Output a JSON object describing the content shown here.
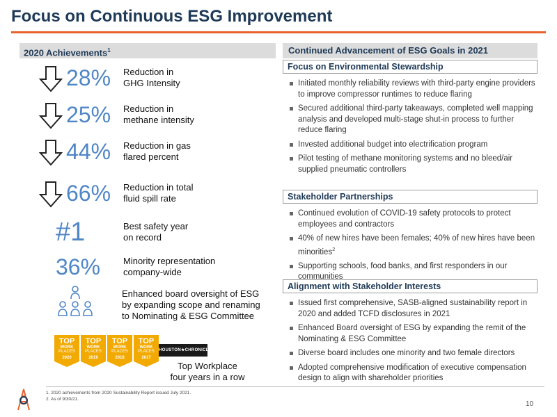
{
  "title": "Focus on Continuous ESG Improvement",
  "left": {
    "header": "2020 Achievements",
    "header_sup": "1",
    "achievements": [
      {
        "value": "28%",
        "line1": "Reduction in",
        "line2": "GHG Intensity",
        "icon": "down-arrow-icon"
      },
      {
        "value": "25%",
        "line1": "Reduction in",
        "line2": "methane intensity",
        "icon": "down-arrow-icon"
      },
      {
        "value": "44%",
        "line1": "Reduction in gas",
        "line2": "flared percent",
        "icon": "down-arrow-icon"
      },
      {
        "value": "66%",
        "line1": "Reduction in total",
        "line2": "fluid spill rate",
        "icon": "down-arrow-icon"
      },
      {
        "value": "#1",
        "line1": "Best safety year",
        "line2": "on record"
      },
      {
        "value": "36%",
        "line1": "Minority representation",
        "line2": "company-wide"
      }
    ],
    "board": {
      "line1": "Enhanced board oversight of ESG",
      "line2": "by expanding scope and renaming",
      "line3": "to Nominating & ESG Committee",
      "icon": "people-group-icon"
    },
    "badges": [
      {
        "top": "TOP",
        "work": "WORK",
        "places": "PLACES",
        "year": "2020"
      },
      {
        "top": "TOP",
        "work": "WORK",
        "places": "PLACES",
        "year": "2019"
      },
      {
        "top": "TOP",
        "work": "WORK",
        "places": "PLACES",
        "year": "2018"
      },
      {
        "top": "TOP",
        "work": "WORK",
        "places": "PLACES",
        "year": "2017"
      }
    ],
    "badge_color": "#f2a900",
    "houston": "HOUSTON★CHRONICLE",
    "top_workplace_line1": "Top Workplace",
    "top_workplace_line2": "four years in a row"
  },
  "right": {
    "header": "Continued Advancement of ESG Goals in 2021",
    "sections": [
      {
        "title": "Focus on Environmental Stewardship",
        "bullets": [
          "Initiated monthly reliability reviews with third-party engine providers to improve compressor runtimes to reduce flaring",
          "Secured additional third-party takeaways, completed well mapping analysis and developed multi-stage shut-in process to further reduce flaring",
          "Invested additional budget into electrification program",
          "Pilot testing of methane monitoring systems and no bleed/air supplied pneumatic controllers"
        ]
      },
      {
        "title": "Stakeholder Partnerships",
        "bullets": [
          "Continued evolution of COVID-19 safety protocols to protect employees and contractors",
          "40% of new hires have been females; 40% of new hires have been minorities",
          "Supporting schools, food banks, and first responders in our communities"
        ],
        "sup_on_bullet_2": "2"
      },
      {
        "title": "Alignment with Stakeholder Interests",
        "bullets": [
          "Issued first comprehensive, SASB-aligned sustainability report in 2020 and added TCFD disclosures in 2021",
          "Enhanced Board oversight of ESG by expanding the remit of the Nominating & ESG Committee",
          "Diverse board includes one minority and two female directors",
          "Adopted comprehensive modification of executive compensation design to align with shareholder priorities"
        ]
      }
    ]
  },
  "footnotes": [
    "1.   2020 achievements from 2020 Sustainability Report issued July 2021.",
    "2.   As of 9/30/21."
  ],
  "page_number": "10",
  "colors": {
    "title": "#1f3a57",
    "accent": "#e8622b",
    "big_numbers": "#4f86c6"
  }
}
